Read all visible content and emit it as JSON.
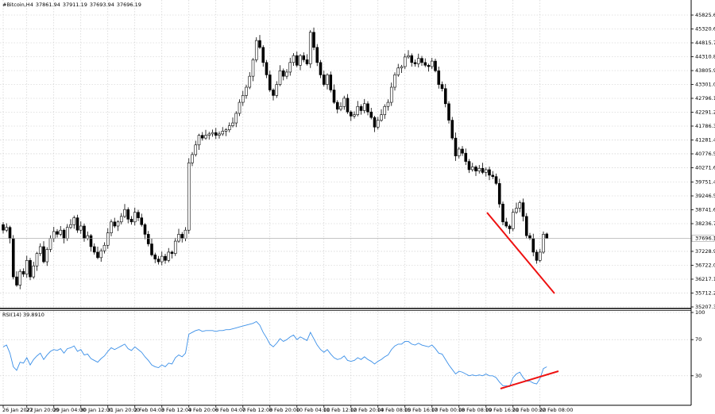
{
  "chart_data": [
    {
      "type": "candlestick",
      "title": "#Bitcoin,H4",
      "up_color": "#ffffff",
      "down_color": "#000000",
      "grid": true,
      "categories": [
        "26 Jan 2022",
        null,
        null,
        null,
        null,
        null,
        null,
        "27 Jan 20:00",
        null,
        null,
        null,
        null,
        null,
        null,
        null,
        "29 Jan 04:00",
        null,
        null,
        null,
        null,
        null,
        null,
        null,
        "30 Jan 12:00",
        null,
        null,
        null,
        null,
        null,
        null,
        null,
        "31 Jan 20:00",
        null,
        null,
        null,
        null,
        null,
        null,
        null,
        "2 Feb 04:00",
        null,
        null,
        null,
        null,
        null,
        null,
        null,
        "3 Feb 12:00",
        null,
        null,
        null,
        null,
        null,
        null,
        null,
        "4 Feb 20:00",
        null,
        null,
        null,
        null,
        null,
        null,
        null,
        "6 Feb 04:00",
        null,
        null,
        null,
        null,
        null,
        null,
        null,
        "7 Feb 12:00",
        null,
        null,
        null,
        null,
        null,
        null,
        null,
        "8 Feb 20:00",
        null,
        null,
        null,
        null,
        null,
        null,
        null,
        "10 Feb 04:00",
        null,
        null,
        null,
        null,
        null,
        null,
        null,
        "11 Feb 12:00",
        null,
        null,
        null,
        null,
        null,
        null,
        null,
        "12 Feb 20:00",
        null,
        null,
        null,
        null,
        null,
        null,
        null,
        "14 Feb 08:00",
        null,
        null,
        null,
        null,
        null,
        null,
        null,
        "15 Feb 16:00",
        null,
        null,
        null,
        null,
        null,
        null,
        null,
        "17 Feb 00:00",
        null,
        null,
        null,
        null,
        null,
        null,
        null,
        "18 Feb 08:00",
        null,
        null,
        null,
        null,
        null,
        null,
        null,
        "19 Feb 16:00",
        null,
        null,
        null,
        null,
        null,
        null,
        null,
        "21 Feb 00:00",
        null,
        null,
        null,
        null,
        null,
        null,
        null,
        "22 Feb 08:00",
        null,
        null
      ],
      "open": [
        38200,
        38000,
        38100,
        37700,
        36300,
        36000,
        36500,
        36400,
        36900,
        36300,
        36700,
        37150,
        37400,
        36850,
        37300,
        37700,
        37950,
        37850,
        38000,
        37700,
        38100,
        38200,
        38450,
        38000,
        38150,
        37700,
        37800,
        37400,
        37200,
        37000,
        37250,
        37450,
        37900,
        38300,
        38150,
        38300,
        38500,
        38750,
        38400,
        38300,
        38650,
        38450,
        38200,
        37850,
        37500,
        37100,
        36950,
        36850,
        37050,
        36900,
        37200,
        37150,
        37600,
        37850,
        37700,
        38000,
        40450,
        40750,
        41100,
        41450,
        41350,
        41450,
        41500,
        41550,
        41450,
        41500,
        41600,
        41650,
        41800,
        41900,
        42250,
        42650,
        42900,
        43200,
        43600,
        44200,
        44900,
        44650,
        44100,
        43650,
        43100,
        42900,
        43300,
        43800,
        43600,
        43750,
        44100,
        44350,
        44000,
        44350,
        44200,
        44050,
        45200,
        44650,
        44100,
        43650,
        43300,
        43650,
        43100,
        42650,
        42400,
        42500,
        42800,
        42300,
        42150,
        42200,
        42500,
        42350,
        42600,
        42300,
        42100,
        41750,
        42000,
        42200,
        42500,
        42650,
        43200,
        43650,
        43900,
        43950,
        44300,
        44350,
        44100,
        44050,
        44250,
        44100,
        44000,
        43950,
        44150,
        43800,
        43300,
        43150,
        42600,
        42000,
        41350,
        40700,
        40950,
        40800,
        40500,
        40200,
        40300,
        40150,
        40250,
        40100,
        40200,
        40000,
        39950,
        39700,
        38950,
        38300,
        38150,
        38050,
        38650,
        38800,
        39000,
        38500,
        37800,
        37700,
        37200,
        36900,
        37200,
        37861.94
      ],
      "high": [
        38290,
        38250,
        38160,
        37820,
        36500,
        36580,
        36610,
        37070,
        36990,
        36850,
        37210,
        37520,
        37600,
        37380,
        37810,
        38120,
        38040,
        38150,
        38060,
        38220,
        38400,
        38530,
        38560,
        38320,
        38240,
        37950,
        37860,
        37520,
        37400,
        37330,
        37560,
        38070,
        38390,
        38450,
        38360,
        38620,
        38950,
        38830,
        38510,
        38820,
        38740,
        38600,
        38260,
        37970,
        37700,
        37180,
        37060,
        37220,
        37140,
        37350,
        37260,
        37720,
        38050,
        37930,
        38110,
        40620,
        40840,
        41250,
        41510,
        41570,
        41650,
        41580,
        41660,
        41720,
        41590,
        41750,
        41710,
        41920,
        42100,
        42330,
        42760,
        43070,
        43290,
        43750,
        44260,
        45020,
        45100,
        44730,
        44190,
        43800,
        43160,
        43420,
        44000,
        43880,
        43860,
        44270,
        44440,
        44500,
        44410,
        44470,
        44400,
        45280,
        45370,
        44770,
        44190,
        43800,
        43710,
        43770,
        43300,
        42730,
        42650,
        42890,
        42950,
        42360,
        42320,
        42700,
        42580,
        42770,
        42690,
        42450,
        42160,
        42120,
        42400,
        42580,
        42760,
        43370,
        43740,
        44050,
        44010,
        44420,
        44550,
        44430,
        44210,
        44420,
        44340,
        44250,
        44060,
        44270,
        44240,
        43950,
        43410,
        43320,
        42690,
        42120,
        41550,
        41030,
        41060,
        40970,
        40590,
        40450,
        40360,
        40370,
        40450,
        40280,
        40310,
        40150,
        40060,
        39870,
        39040,
        38450,
        38210,
        38770,
        39000,
        39080,
        39150,
        38620,
        37900,
        37870,
        37290,
        37320,
        37950,
        37911.19
      ],
      "low": [
        37880,
        37930,
        37520,
        36210,
        35940,
        35850,
        36300,
        36270,
        36180,
        36230,
        36520,
        37060,
        36790,
        36700,
        37200,
        37570,
        37730,
        37780,
        37520,
        37610,
        38040,
        38050,
        37900,
        37870,
        37580,
        37630,
        37220,
        37110,
        36940,
        36850,
        37150,
        37320,
        37780,
        38080,
        37970,
        38210,
        38440,
        38250,
        38200,
        38170,
        38330,
        38130,
        37670,
        37410,
        37040,
        36800,
        36750,
        36720,
        36780,
        36830,
        36970,
        37060,
        37540,
        37550,
        37600,
        37870,
        40330,
        40680,
        40920,
        41260,
        41290,
        41300,
        41400,
        41320,
        41330,
        41430,
        41420,
        41560,
        41740,
        41750,
        42150,
        42520,
        42780,
        43130,
        43420,
        44110,
        44590,
        43950,
        43530,
        43030,
        42720,
        42810,
        43240,
        43450,
        43500,
        43620,
        43980,
        43930,
        43820,
        44110,
        43990,
        43900,
        44550,
        43970,
        43530,
        43230,
        43120,
        43010,
        42590,
        42250,
        42330,
        42380,
        42230,
        41970,
        42060,
        42140,
        42200,
        42250,
        42180,
        42030,
        41570,
        41660,
        41940,
        42050,
        42350,
        42520,
        43080,
        43580,
        43720,
        43860,
        44240,
        43950,
        43950,
        43920,
        43980,
        43930,
        43770,
        43860,
        43740,
        43150,
        43050,
        42470,
        41880,
        41280,
        40520,
        40610,
        40700,
        40370,
        40080,
        40130,
        39970,
        40060,
        40040,
        39950,
        39820,
        39860,
        39640,
        38820,
        38180,
        38080,
        37870,
        37960,
        38590,
        38650,
        38320,
        37710,
        37640,
        37050,
        36780,
        36830,
        37140,
        37693.94
      ],
      "close": [
        38000,
        38100,
        37700,
        36300,
        36000,
        36500,
        36400,
        36900,
        36300,
        36700,
        37150,
        37400,
        36850,
        37300,
        37700,
        37950,
        37850,
        38000,
        37700,
        38100,
        38200,
        38450,
        38000,
        38150,
        37700,
        37800,
        37400,
        37200,
        37000,
        37250,
        37450,
        37900,
        38300,
        38150,
        38300,
        38500,
        38750,
        38400,
        38300,
        38650,
        38450,
        38200,
        37850,
        37500,
        37100,
        36950,
        36850,
        37050,
        36900,
        37200,
        37150,
        37600,
        37850,
        37700,
        38000,
        40450,
        40750,
        41100,
        41450,
        41350,
        41450,
        41500,
        41550,
        41450,
        41500,
        41600,
        41650,
        41800,
        41900,
        42250,
        42650,
        42900,
        43200,
        43600,
        44200,
        44900,
        44650,
        44100,
        43650,
        43100,
        42900,
        43300,
        43800,
        43600,
        43750,
        44100,
        44350,
        44000,
        44350,
        44200,
        44050,
        45200,
        44650,
        44100,
        43650,
        43300,
        43650,
        43100,
        42650,
        42400,
        42500,
        42800,
        42300,
        42150,
        42200,
        42500,
        42350,
        42600,
        42300,
        42100,
        41750,
        42000,
        42200,
        42500,
        42650,
        43200,
        43650,
        43900,
        43950,
        44300,
        44350,
        44100,
        44050,
        44250,
        44100,
        44000,
        43950,
        44150,
        43800,
        43300,
        43150,
        42600,
        42000,
        41350,
        40700,
        40950,
        40800,
        40500,
        40200,
        40300,
        40150,
        40250,
        40100,
        40200,
        40000,
        39950,
        39700,
        38950,
        38300,
        38150,
        38050,
        38650,
        38800,
        39000,
        38500,
        37800,
        37700,
        37200,
        36900,
        37200,
        37850,
        37696.19
      ],
      "ylim": [
        35178,
        46374
      ],
      "yticks": [
        {
          "value": 45825.6,
          "label": "45825.60"
        },
        {
          "value": 45320.6,
          "label": "45320.60"
        },
        {
          "value": 44815.7,
          "label": "44815.70"
        },
        {
          "value": 44310.8,
          "label": "44310.80"
        },
        {
          "value": 43805.9,
          "label": "43805.90"
        },
        {
          "value": 43301,
          "label": "43301.00"
        },
        {
          "value": 42796.1,
          "label": "42796.10"
        },
        {
          "value": 42291.2,
          "label": "42291.20"
        },
        {
          "value": 41786.3,
          "label": "41786.30"
        },
        {
          "value": 41281.4,
          "label": "41281.40"
        },
        {
          "value": 40776.5,
          "label": "40776.50"
        },
        {
          "value": 40271.6,
          "label": "40271.60"
        },
        {
          "value": 39751.4,
          "label": "39751.40"
        },
        {
          "value": 39246.5,
          "label": "39246.50"
        },
        {
          "value": 38741.6,
          "label": "38741.60"
        },
        {
          "value": 38236.7,
          "label": "38236.70"
        },
        {
          "value": 37228.9,
          "label": "37228.90"
        },
        {
          "value": 36722,
          "label": "36722.00"
        },
        {
          "value": 36217.1,
          "label": "36217.10"
        },
        {
          "value": 35712.2,
          "label": "35712.20"
        },
        {
          "value": 35207.3,
          "label": "35207.30"
        }
      ]
    },
    {
      "type": "line",
      "title": "RSI(14) 39.8910",
      "color": "#3a8fe8",
      "grid": true,
      "ylim": [
        0,
        100
      ],
      "yticks": [
        100,
        70,
        30
      ],
      "values": [
        62,
        64,
        55,
        40,
        36,
        45,
        44,
        50,
        42,
        48,
        52,
        55,
        48,
        53,
        57,
        59,
        58,
        60,
        55,
        60,
        61,
        63,
        57,
        59,
        53,
        54,
        49,
        47,
        45,
        49,
        52,
        57,
        61,
        59,
        61,
        63,
        65,
        60,
        58,
        62,
        59,
        56,
        51,
        47,
        42,
        40,
        39,
        42,
        40,
        44,
        43,
        50,
        53,
        51,
        55,
        76,
        78,
        80,
        81,
        79,
        80,
        80,
        80,
        79,
        80,
        80,
        81,
        81,
        82,
        83,
        84,
        85,
        86,
        87,
        88,
        90,
        86,
        78,
        72,
        65,
        62,
        66,
        71,
        68,
        70,
        73,
        75,
        70,
        73,
        71,
        69,
        78,
        71,
        64,
        59,
        56,
        59,
        54,
        50,
        48,
        49,
        52,
        47,
        46,
        47,
        50,
        48,
        51,
        48,
        46,
        43,
        46,
        48,
        51,
        53,
        59,
        63,
        65,
        65,
        68,
        68,
        65,
        64,
        66,
        64,
        63,
        62,
        64,
        60,
        55,
        54,
        48,
        42,
        37,
        32,
        35,
        34,
        32,
        30,
        31,
        30,
        31,
        30,
        32,
        30,
        30,
        28,
        23,
        19,
        19,
        18,
        28,
        32,
        34,
        28,
        24,
        24,
        22,
        21,
        27,
        38,
        39.891
      ]
    }
  ]
}
